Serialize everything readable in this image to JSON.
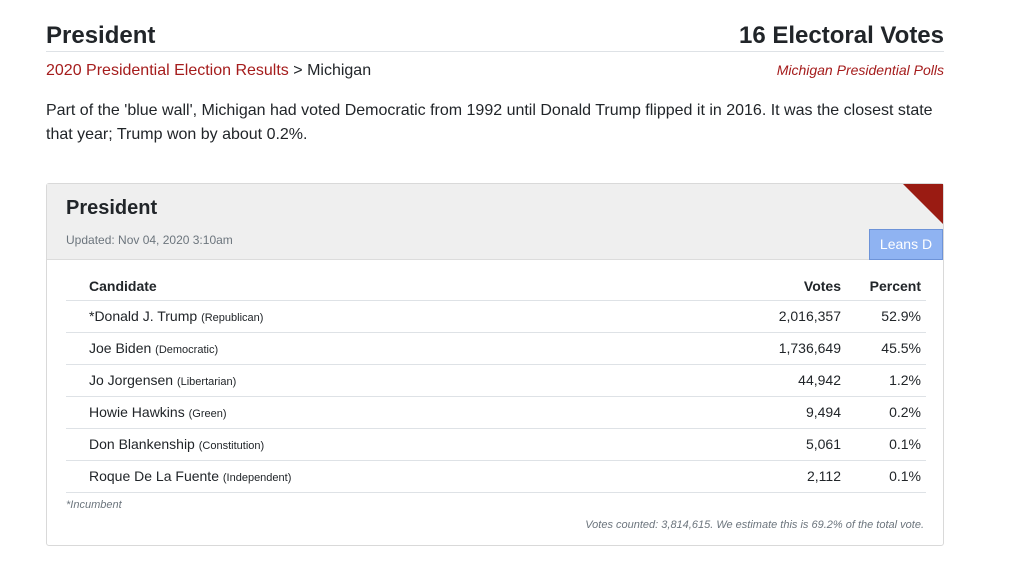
{
  "header": {
    "title": "President",
    "electoral_votes": "16 Electoral Votes"
  },
  "breadcrumb": {
    "link": "2020 Presidential Election Results",
    "separator": ">",
    "current": "Michigan"
  },
  "polls_link": "Michigan Presidential Polls",
  "intro": "Part of the 'blue wall', Michigan had voted Democratic from 1992 until Donald Trump flipped it in 2016. It was the closest state that year; Trump won by about 0.2%.",
  "card": {
    "title": "President",
    "updated": "Updated: Nov 04, 2020 3:10am",
    "lean": "Leans D",
    "columns": {
      "candidate": "Candidate",
      "votes": "Votes",
      "percent": "Percent"
    },
    "rows": [
      {
        "name": "*Donald J. Trump",
        "party": "(Republican)",
        "votes": "2,016,357",
        "percent": "52.9%"
      },
      {
        "name": "Joe Biden",
        "party": "(Democratic)",
        "votes": "1,736,649",
        "percent": "45.5%"
      },
      {
        "name": "Jo Jorgensen",
        "party": "(Libertarian)",
        "votes": "44,942",
        "percent": "1.2%"
      },
      {
        "name": "Howie Hawkins",
        "party": "(Green)",
        "votes": "9,494",
        "percent": "0.2%"
      },
      {
        "name": "Don Blankenship",
        "party": "(Constitution)",
        "votes": "5,061",
        "percent": "0.1%"
      },
      {
        "name": "Roque De La Fuente",
        "party": "(Independent)",
        "votes": "2,112",
        "percent": "0.1%"
      }
    ],
    "incumbent_note": "*Incumbent",
    "counted_note": "Votes counted: 3,814,615. We estimate this is 69.2% of the total vote."
  },
  "colors": {
    "link": "#a51c1c",
    "corner": "#9a1b12",
    "lean_badge": "#8fb3f2"
  }
}
